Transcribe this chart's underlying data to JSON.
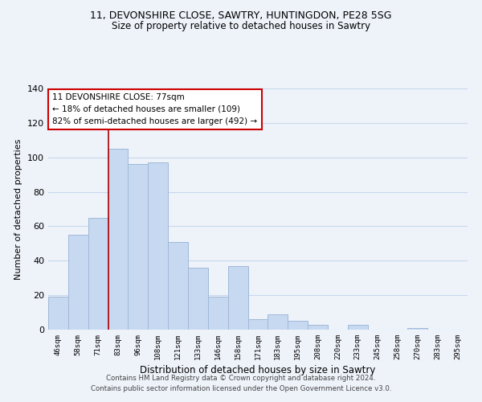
{
  "title": "11, DEVONSHIRE CLOSE, SAWTRY, HUNTINGDON, PE28 5SG",
  "subtitle": "Size of property relative to detached houses in Sawtry",
  "xlabel": "Distribution of detached houses by size in Sawtry",
  "ylabel": "Number of detached properties",
  "bar_labels": [
    "46sqm",
    "58sqm",
    "71sqm",
    "83sqm",
    "96sqm",
    "108sqm",
    "121sqm",
    "133sqm",
    "146sqm",
    "158sqm",
    "171sqm",
    "183sqm",
    "195sqm",
    "208sqm",
    "220sqm",
    "233sqm",
    "245sqm",
    "258sqm",
    "270sqm",
    "283sqm",
    "295sqm"
  ],
  "bar_values": [
    19,
    55,
    65,
    105,
    96,
    97,
    51,
    36,
    19,
    37,
    6,
    9,
    5,
    3,
    0,
    3,
    0,
    0,
    1,
    0,
    0
  ],
  "bar_color": "#c6d9f0",
  "bar_edge_color": "#a0b8d8",
  "vline_x": 2.5,
  "vline_color": "#aa0000",
  "annotation_box_edge": "#cc0000",
  "annotation_label": "11 DEVONSHIRE CLOSE: 77sqm",
  "annotation_line1": "← 18% of detached houses are smaller (109)",
  "annotation_line2": "82% of semi-detached houses are larger (492) →",
  "ylim": [
    0,
    140
  ],
  "yticks": [
    0,
    20,
    40,
    60,
    80,
    100,
    120,
    140
  ],
  "footer_line1": "Contains HM Land Registry data © Crown copyright and database right 2024.",
  "footer_line2": "Contains public sector information licensed under the Open Government Licence v3.0.",
  "bg_color": "#eef3fa",
  "grid_color": "#c8d8ec",
  "title_fontsize": 9,
  "subtitle_fontsize": 8.5
}
